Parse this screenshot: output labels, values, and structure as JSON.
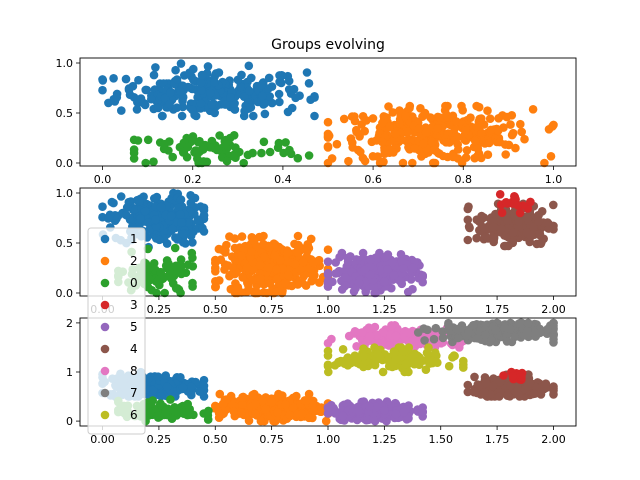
{
  "chart_data": [
    {
      "type": "scatter",
      "title": "Groups evolving",
      "xlabel": "",
      "ylabel": "",
      "xlim": [
        -0.05,
        1.05
      ],
      "ylim": [
        -0.03,
        1.05
      ],
      "xticks": [
        "0.0",
        "0.2",
        "0.4",
        "0.6",
        "0.8",
        "1.0"
      ],
      "yticks": [
        "0.0",
        "0.5",
        "1.0"
      ],
      "grid": false,
      "clusters": [
        {
          "label": "1",
          "color": "#1f77b4",
          "xmin": 0.0,
          "xmax": 0.47,
          "ymin": 0.47,
          "ymax": 1.0,
          "cx": 0.24,
          "cy": 0.7,
          "n": 260
        },
        {
          "label": "2",
          "color": "#ff7f0e",
          "xmin": 0.5,
          "xmax": 1.0,
          "ymin": 0.0,
          "ymax": 0.57,
          "cx": 0.73,
          "cy": 0.28,
          "n": 320
        },
        {
          "label": "0",
          "color": "#2ca02c",
          "xmin": 0.07,
          "xmax": 0.53,
          "ymin": 0.0,
          "ymax": 0.4,
          "cx": 0.24,
          "cy": 0.13,
          "n": 85
        }
      ]
    },
    {
      "type": "scatter",
      "title": "",
      "xlabel": "",
      "ylabel": "",
      "xlim": [
        -0.1,
        2.1
      ],
      "ylim": [
        -0.03,
        1.05
      ],
      "xticks": [
        "0.00",
        "0.25",
        "0.50",
        "0.75",
        "1.00",
        "1.25",
        "1.50",
        "1.75",
        "2.00"
      ],
      "yticks": [
        "0.0",
        "0.5",
        "1.0"
      ],
      "grid": false,
      "legend_position": "left",
      "clusters": [
        {
          "label": "1",
          "color": "#1f77b4",
          "xmin": 0.0,
          "xmax": 0.45,
          "ymin": 0.45,
          "ymax": 1.0,
          "cx": 0.25,
          "cy": 0.73,
          "n": 240
        },
        {
          "label": "2",
          "color": "#ff7f0e",
          "xmin": 0.5,
          "xmax": 1.0,
          "ymin": 0.0,
          "ymax": 0.57,
          "cx": 0.74,
          "cy": 0.28,
          "n": 320
        },
        {
          "label": "0",
          "color": "#2ca02c",
          "xmin": 0.07,
          "xmax": 0.5,
          "ymin": 0.0,
          "ymax": 0.45,
          "cx": 0.24,
          "cy": 0.17,
          "n": 90
        },
        {
          "label": "5",
          "color": "#9467bd",
          "xmin": 1.0,
          "xmax": 1.42,
          "ymin": 0.0,
          "ymax": 0.4,
          "cx": 1.2,
          "cy": 0.2,
          "n": 240
        },
        {
          "label": "4",
          "color": "#8c564b",
          "xmin": 1.62,
          "xmax": 2.0,
          "ymin": 0.47,
          "ymax": 0.92,
          "cx": 1.83,
          "cy": 0.68,
          "n": 200
        },
        {
          "label": "3",
          "color": "#d62728",
          "xmin": 1.75,
          "xmax": 1.93,
          "ymin": 0.8,
          "ymax": 1.0,
          "cx": 1.84,
          "cy": 0.9,
          "n": 16
        }
      ]
    },
    {
      "type": "scatter",
      "title": "",
      "xlabel": "",
      "ylabel": "",
      "xlim": [
        -0.1,
        2.1
      ],
      "ylim": [
        -0.1,
        2.1
      ],
      "xticks": [
        "0.00",
        "0.25",
        "0.50",
        "0.75",
        "1.00",
        "1.25",
        "1.50",
        "1.75",
        "2.00"
      ],
      "yticks": [
        "0",
        "1",
        "2"
      ],
      "grid": false,
      "clusters": [
        {
          "label": "1",
          "color": "#1f77b4",
          "xmin": 0.0,
          "xmax": 0.45,
          "ymin": 0.5,
          "ymax": 1.0,
          "cx": 0.22,
          "cy": 0.72,
          "n": 240
        },
        {
          "label": "2",
          "color": "#ff7f0e",
          "xmin": 0.5,
          "xmax": 1.0,
          "ymin": 0.0,
          "ymax": 0.55,
          "cx": 0.74,
          "cy": 0.27,
          "n": 300
        },
        {
          "label": "0",
          "color": "#2ca02c",
          "xmin": 0.07,
          "xmax": 0.5,
          "ymin": 0.0,
          "ymax": 0.45,
          "cx": 0.24,
          "cy": 0.2,
          "n": 90
        },
        {
          "label": "5",
          "color": "#9467bd",
          "xmin": 1.0,
          "xmax": 1.42,
          "ymin": 0.0,
          "ymax": 0.4,
          "cx": 1.2,
          "cy": 0.2,
          "n": 220
        },
        {
          "label": "4",
          "color": "#8c564b",
          "xmin": 1.62,
          "xmax": 2.0,
          "ymin": 0.5,
          "ymax": 0.95,
          "cx": 1.82,
          "cy": 0.68,
          "n": 200
        },
        {
          "label": "3",
          "color": "#d62728",
          "xmin": 1.75,
          "xmax": 1.93,
          "ymin": 0.8,
          "ymax": 1.0,
          "cx": 1.84,
          "cy": 0.9,
          "n": 14
        },
        {
          "label": "8",
          "color": "#e377c2",
          "xmin": 1.0,
          "xmax": 1.6,
          "ymin": 1.5,
          "ymax": 1.95,
          "cx": 1.35,
          "cy": 1.7,
          "n": 200
        },
        {
          "label": "7",
          "color": "#7f7f7f",
          "xmin": 1.4,
          "xmax": 2.0,
          "ymin": 1.6,
          "ymax": 2.0,
          "cx": 1.75,
          "cy": 1.82,
          "n": 240
        },
        {
          "label": "6",
          "color": "#bcbd22",
          "xmin": 1.0,
          "xmax": 1.6,
          "ymin": 1.0,
          "ymax": 1.5,
          "cx": 1.3,
          "cy": 1.25,
          "n": 160
        }
      ]
    }
  ],
  "legend": {
    "entries": [
      {
        "label": "1",
        "color": "#1f77b4"
      },
      {
        "label": "2",
        "color": "#ff7f0e"
      },
      {
        "label": "0",
        "color": "#2ca02c"
      },
      {
        "label": "3",
        "color": "#d62728"
      },
      {
        "label": "5",
        "color": "#9467bd"
      },
      {
        "label": "4",
        "color": "#8c564b"
      },
      {
        "label": "8",
        "color": "#e377c2"
      },
      {
        "label": "7",
        "color": "#7f7f7f"
      },
      {
        "label": "6",
        "color": "#bcbd22"
      }
    ]
  }
}
